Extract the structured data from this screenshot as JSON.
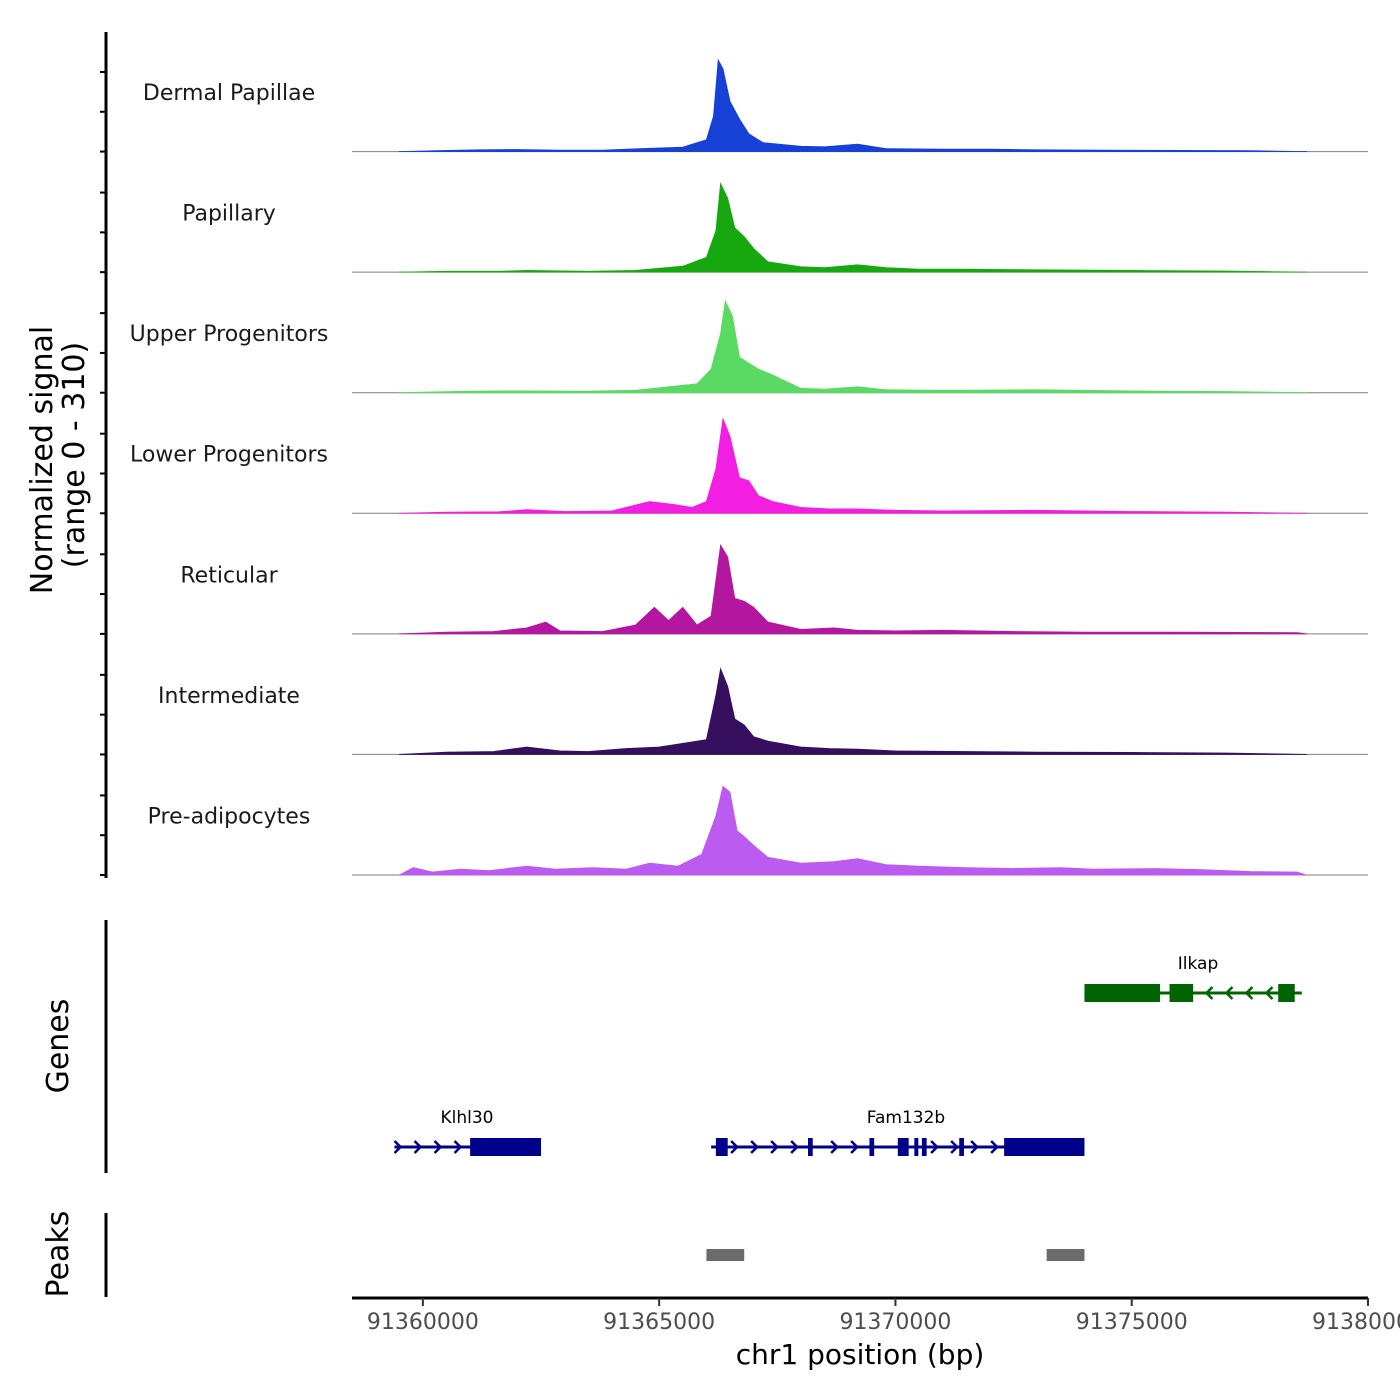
{
  "chart_data": {
    "type": "area",
    "title": "",
    "chromosome": "chr1",
    "xlabel": "chr1 position (bp)",
    "xlim": [
      91358500,
      91380000
    ],
    "x_ticks": [
      91360000,
      91365000,
      91370000,
      91375000,
      91380000
    ],
    "x_tick_labels": [
      "91360000",
      "91365000",
      "91370000",
      "91375000",
      "91380000"
    ],
    "coverage": {
      "ylabel_line1": "Normalized signal",
      "ylabel_line2": "(range 0 - 310)",
      "ylim": [
        0,
        310
      ],
      "series": [
        {
          "name": "Dermal Papillae",
          "color": "#1740D6",
          "points": [
            [
              91359500,
              0
            ],
            [
              91360500,
              4
            ],
            [
              91361200,
              6
            ],
            [
              91362000,
              7
            ],
            [
              91362900,
              5
            ],
            [
              91363800,
              5
            ],
            [
              91364600,
              10
            ],
            [
              91365500,
              15
            ],
            [
              91366000,
              40
            ],
            [
              91366150,
              120
            ],
            [
              91366250,
              310
            ],
            [
              91366350,
              280
            ],
            [
              91366500,
              170
            ],
            [
              91366700,
              110
            ],
            [
              91366900,
              60
            ],
            [
              91367200,
              30
            ],
            [
              91368000,
              18
            ],
            [
              91368500,
              16
            ],
            [
              91369200,
              25
            ],
            [
              91369800,
              10
            ],
            [
              91371000,
              8
            ],
            [
              91372000,
              8
            ],
            [
              91373000,
              6
            ],
            [
              91374500,
              5
            ],
            [
              91376000,
              4
            ],
            [
              91377500,
              3
            ],
            [
              91378700,
              0
            ]
          ]
        },
        {
          "name": "Papillary",
          "color": "#17A80F",
          "points": [
            [
              91359500,
              0
            ],
            [
              91360500,
              3
            ],
            [
              91361600,
              3
            ],
            [
              91362200,
              6
            ],
            [
              91363500,
              3
            ],
            [
              91364500,
              6
            ],
            [
              91365500,
              20
            ],
            [
              91366000,
              50
            ],
            [
              91366200,
              140
            ],
            [
              91366300,
              300
            ],
            [
              91366450,
              250
            ],
            [
              91366600,
              150
            ],
            [
              91366800,
              120
            ],
            [
              91367000,
              80
            ],
            [
              91367300,
              35
            ],
            [
              91368000,
              18
            ],
            [
              91368500,
              15
            ],
            [
              91369200,
              25
            ],
            [
              91369800,
              15
            ],
            [
              91370500,
              10
            ],
            [
              91371500,
              10
            ],
            [
              91373000,
              8
            ],
            [
              91375000,
              6
            ],
            [
              91377000,
              4
            ],
            [
              91378700,
              0
            ]
          ]
        },
        {
          "name": "Upper Progenitors",
          "color": "#5ADA62",
          "points": [
            [
              91359500,
              0
            ],
            [
              91361000,
              5
            ],
            [
              91362000,
              6
            ],
            [
              91363500,
              5
            ],
            [
              91364500,
              8
            ],
            [
              91365200,
              20
            ],
            [
              91365800,
              30
            ],
            [
              91366100,
              80
            ],
            [
              91366300,
              200
            ],
            [
              91366400,
              310
            ],
            [
              91366550,
              260
            ],
            [
              91366700,
              120
            ],
            [
              91366900,
              100
            ],
            [
              91367100,
              80
            ],
            [
              91367400,
              60
            ],
            [
              91368000,
              15
            ],
            [
              91368500,
              12
            ],
            [
              91369200,
              20
            ],
            [
              91369800,
              10
            ],
            [
              91371000,
              8
            ],
            [
              91373000,
              10
            ],
            [
              91375000,
              6
            ],
            [
              91377000,
              4
            ],
            [
              91378700,
              0
            ]
          ]
        },
        {
          "name": "Lower Progenitors",
          "color": "#F21EE2",
          "points": [
            [
              91359500,
              0
            ],
            [
              91360500,
              4
            ],
            [
              91361600,
              5
            ],
            [
              91362200,
              12
            ],
            [
              91363000,
              6
            ],
            [
              91364000,
              8
            ],
            [
              91364800,
              40
            ],
            [
              91365300,
              30
            ],
            [
              91365700,
              20
            ],
            [
              91366000,
              40
            ],
            [
              91366200,
              150
            ],
            [
              91366350,
              320
            ],
            [
              91366500,
              260
            ],
            [
              91366700,
              120
            ],
            [
              91366900,
              110
            ],
            [
              91367100,
              60
            ],
            [
              91367400,
              40
            ],
            [
              91368000,
              20
            ],
            [
              91368600,
              15
            ],
            [
              91369200,
              15
            ],
            [
              91370000,
              10
            ],
            [
              91371000,
              8
            ],
            [
              91373000,
              10
            ],
            [
              91375000,
              6
            ],
            [
              91377000,
              4
            ],
            [
              91378700,
              0
            ]
          ]
        },
        {
          "name": "Reticular",
          "color": "#B3169F",
          "points": [
            [
              91359500,
              0
            ],
            [
              91360500,
              6
            ],
            [
              91361500,
              8
            ],
            [
              91362200,
              20
            ],
            [
              91362600,
              40
            ],
            [
              91362900,
              10
            ],
            [
              91363800,
              8
            ],
            [
              91364500,
              30
            ],
            [
              91364900,
              90
            ],
            [
              91365200,
              45
            ],
            [
              91365500,
              90
            ],
            [
              91365800,
              30
            ],
            [
              91366100,
              60
            ],
            [
              91366300,
              300
            ],
            [
              91366450,
              260
            ],
            [
              91366600,
              120
            ],
            [
              91366800,
              110
            ],
            [
              91367000,
              90
            ],
            [
              91367300,
              40
            ],
            [
              91368000,
              15
            ],
            [
              91368700,
              20
            ],
            [
              91369200,
              12
            ],
            [
              91370000,
              10
            ],
            [
              91371000,
              12
            ],
            [
              91372500,
              8
            ],
            [
              91374000,
              6
            ],
            [
              91376000,
              6
            ],
            [
              91378500,
              4
            ],
            [
              91378700,
              0
            ]
          ]
        },
        {
          "name": "Intermediate",
          "color": "#36105E",
          "points": [
            [
              91359500,
              0
            ],
            [
              91360500,
              8
            ],
            [
              91361500,
              10
            ],
            [
              91362200,
              25
            ],
            [
              91362900,
              12
            ],
            [
              91363500,
              10
            ],
            [
              91364300,
              20
            ],
            [
              91365000,
              25
            ],
            [
              91365600,
              40
            ],
            [
              91366000,
              50
            ],
            [
              91366200,
              200
            ],
            [
              91366300,
              290
            ],
            [
              91366450,
              230
            ],
            [
              91366600,
              120
            ],
            [
              91366800,
              100
            ],
            [
              91367000,
              60
            ],
            [
              91367300,
              45
            ],
            [
              91368000,
              25
            ],
            [
              91368600,
              20
            ],
            [
              91369200,
              18
            ],
            [
              91370000,
              12
            ],
            [
              91371500,
              10
            ],
            [
              91373000,
              8
            ],
            [
              91375000,
              7
            ],
            [
              91377000,
              5
            ],
            [
              91378700,
              0
            ]
          ]
        },
        {
          "name": "Pre-adipocytes",
          "color": "#BC5BF0",
          "points": [
            [
              91359500,
              0
            ],
            [
              91359800,
              25
            ],
            [
              91360200,
              10
            ],
            [
              91360800,
              20
            ],
            [
              91361400,
              15
            ],
            [
              91362200,
              30
            ],
            [
              91362800,
              20
            ],
            [
              91363600,
              25
            ],
            [
              91364300,
              20
            ],
            [
              91364800,
              40
            ],
            [
              91365400,
              30
            ],
            [
              91365900,
              70
            ],
            [
              91366200,
              200
            ],
            [
              91366350,
              300
            ],
            [
              91366500,
              280
            ],
            [
              91366650,
              150
            ],
            [
              91366800,
              130
            ],
            [
              91367000,
              100
            ],
            [
              91367300,
              60
            ],
            [
              91368000,
              40
            ],
            [
              91368700,
              45
            ],
            [
              91369200,
              55
            ],
            [
              91369800,
              35
            ],
            [
              91370500,
              30
            ],
            [
              91371500,
              25
            ],
            [
              91372500,
              22
            ],
            [
              91373500,
              25
            ],
            [
              91374200,
              20
            ],
            [
              91375500,
              22
            ],
            [
              91376500,
              18
            ],
            [
              91377500,
              12
            ],
            [
              91378500,
              10
            ],
            [
              91378700,
              0
            ]
          ]
        }
      ]
    },
    "genes": {
      "ylabel": "Genes",
      "items": [
        {
          "name": "Ilkap",
          "strand": "-",
          "start": 91374000,
          "end": 91378600,
          "color": "#006400",
          "exons": [
            [
              91374000,
              91375600
            ],
            [
              91375800,
              91376300
            ],
            [
              91378100,
              91378450
            ]
          ]
        },
        {
          "name": "Klhl30",
          "strand": "+",
          "start": 91359400,
          "end": 91362500,
          "color": "#00008B",
          "exons": [
            [
              91361000,
              91362500
            ]
          ]
        },
        {
          "name": "Fam132b",
          "strand": "+",
          "start": 91366100,
          "end": 91374000,
          "color": "#00008B",
          "exons": [
            [
              91366200,
              91366450
            ],
            [
              91368150,
              91368250
            ],
            [
              91369450,
              91369550
            ],
            [
              91370050,
              91370280
            ],
            [
              91370400,
              91370470
            ],
            [
              91370560,
              91370660
            ],
            [
              91371350,
              91371450
            ],
            [
              91372300,
              91374000
            ]
          ]
        }
      ]
    },
    "peaks": {
      "ylabel": "Peaks",
      "color": "#6B6B6B",
      "regions": [
        [
          91366000,
          91366800
        ],
        [
          91373200,
          91374000
        ]
      ]
    }
  }
}
